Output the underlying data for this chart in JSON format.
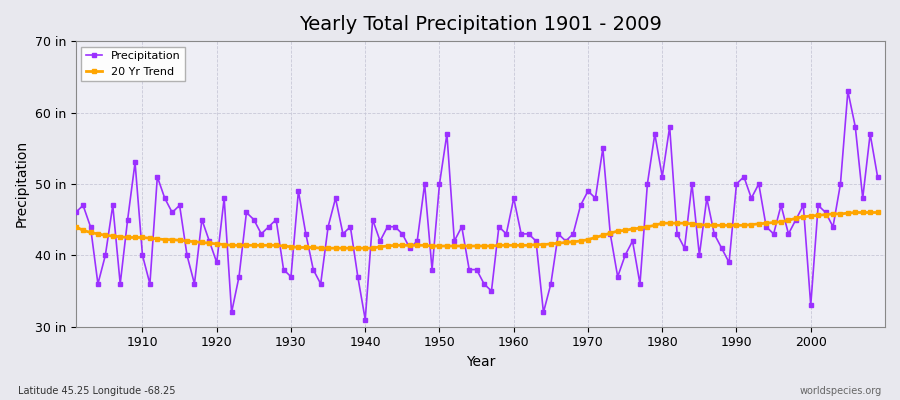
{
  "title": "Yearly Total Precipitation 1901 - 2009",
  "xlabel": "Year",
  "ylabel": "Precipitation",
  "subtitle": "Latitude 45.25 Longitude -68.25",
  "watermark": "worldspecies.org",
  "ylim": [
    30,
    70
  ],
  "yticks": [
    30,
    40,
    50,
    60,
    70
  ],
  "ytick_labels": [
    "30 in",
    "40 in",
    "50 in",
    "60 in",
    "70 in"
  ],
  "precip_color": "#9B30FF",
  "trend_color": "#FFA500",
  "bg_color": "#E8E8EE",
  "plot_bg_color": "#EEEEF5",
  "grid_color": "#C8C8D8",
  "years": [
    1901,
    1902,
    1903,
    1904,
    1905,
    1906,
    1907,
    1908,
    1909,
    1910,
    1911,
    1912,
    1913,
    1914,
    1915,
    1916,
    1917,
    1918,
    1919,
    1920,
    1921,
    1922,
    1923,
    1924,
    1925,
    1926,
    1927,
    1928,
    1929,
    1930,
    1931,
    1932,
    1933,
    1934,
    1935,
    1936,
    1937,
    1938,
    1939,
    1940,
    1941,
    1942,
    1943,
    1944,
    1945,
    1946,
    1947,
    1948,
    1949,
    1950,
    1951,
    1952,
    1953,
    1954,
    1955,
    1956,
    1957,
    1958,
    1959,
    1960,
    1961,
    1962,
    1963,
    1964,
    1965,
    1966,
    1967,
    1968,
    1969,
    1970,
    1971,
    1972,
    1973,
    1974,
    1975,
    1976,
    1977,
    1978,
    1979,
    1980,
    1981,
    1982,
    1983,
    1984,
    1985,
    1986,
    1987,
    1988,
    1989,
    1990,
    1991,
    1992,
    1993,
    1994,
    1995,
    1996,
    1997,
    1998,
    1999,
    2000,
    2001,
    2002,
    2003,
    2004,
    2005,
    2006,
    2007,
    2008,
    2009
  ],
  "precip": [
    46,
    47,
    44,
    36,
    40,
    47,
    36,
    45,
    53,
    40,
    36,
    51,
    48,
    46,
    47,
    40,
    36,
    45,
    42,
    39,
    48,
    32,
    37,
    46,
    45,
    43,
    44,
    45,
    38,
    37,
    49,
    43,
    38,
    36,
    44,
    48,
    43,
    44,
    37,
    31,
    45,
    42,
    44,
    44,
    43,
    41,
    42,
    50,
    38,
    50,
    57,
    42,
    44,
    38,
    38,
    36,
    35,
    44,
    43,
    48,
    43,
    43,
    42,
    32,
    36,
    43,
    42,
    43,
    47,
    49,
    48,
    55,
    43,
    37,
    40,
    42,
    36,
    50,
    57,
    51,
    58,
    43,
    41,
    50,
    40,
    48,
    43,
    41,
    39,
    50,
    51,
    48,
    50,
    44,
    43,
    47,
    43,
    45,
    47,
    33,
    47,
    46,
    44,
    50,
    63,
    58,
    48,
    57,
    51
  ],
  "trend": [
    44.0,
    43.5,
    43.2,
    43.0,
    42.8,
    42.7,
    42.6,
    42.5,
    42.5,
    42.5,
    42.4,
    42.3,
    42.2,
    42.2,
    42.1,
    42.0,
    41.9,
    41.8,
    41.7,
    41.6,
    41.5,
    41.4,
    41.4,
    41.4,
    41.4,
    41.4,
    41.4,
    41.4,
    41.3,
    41.2,
    41.1,
    41.1,
    41.1,
    41.0,
    41.0,
    41.0,
    41.0,
    41.0,
    41.0,
    41.0,
    41.0,
    41.2,
    41.3,
    41.4,
    41.4,
    41.4,
    41.4,
    41.4,
    41.3,
    41.3,
    41.3,
    41.3,
    41.3,
    41.3,
    41.3,
    41.3,
    41.3,
    41.4,
    41.4,
    41.4,
    41.4,
    41.4,
    41.5,
    41.5,
    41.6,
    41.7,
    41.8,
    41.9,
    42.0,
    42.2,
    42.5,
    42.8,
    43.1,
    43.4,
    43.5,
    43.7,
    43.8,
    44.0,
    44.2,
    44.5,
    44.5,
    44.5,
    44.5,
    44.4,
    44.3,
    44.2,
    44.2,
    44.2,
    44.2,
    44.2,
    44.2,
    44.3,
    44.4,
    44.5,
    44.6,
    44.7,
    44.9,
    45.2,
    45.4,
    45.5,
    45.6,
    45.7,
    45.8,
    45.8,
    45.9,
    46.0,
    46.0,
    46.0,
    46.0
  ],
  "xticks": [
    1910,
    1920,
    1930,
    1940,
    1950,
    1960,
    1970,
    1980,
    1990,
    2000
  ],
  "legend_loc": "upper left"
}
